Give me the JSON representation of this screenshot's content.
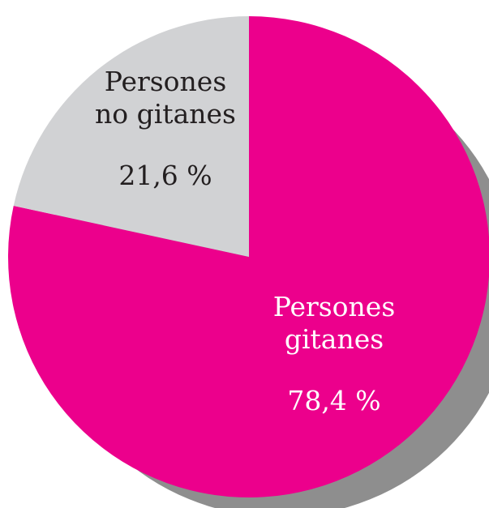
{
  "chart_data": {
    "type": "pie",
    "slices": [
      {
        "label_lines": [
          "Persones",
          "gitanes"
        ],
        "value": 78.4,
        "value_label": "78,4 %",
        "color": "#EC008C",
        "text_color": "#FFFFFF"
      },
      {
        "label_lines": [
          "Persones",
          "no gitanes"
        ],
        "value": 21.6,
        "value_label": "21,6 %",
        "color": "#D1D2D4",
        "text_color": "#231F20"
      }
    ],
    "start_direction": "12 o'clock",
    "slice_order": "clockwise",
    "shadow_color": "#8E8E8E",
    "legend": "none"
  }
}
